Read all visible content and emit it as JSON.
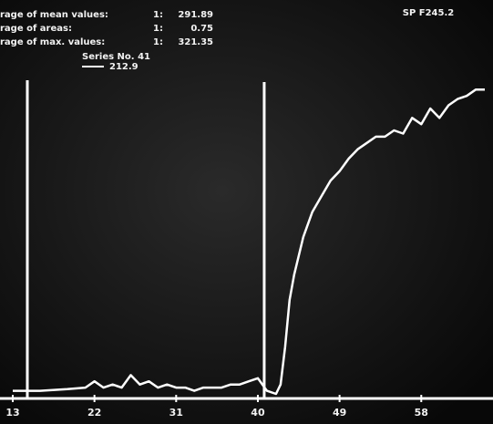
{
  "chart_data": {
    "type": "line",
    "header": [
      {
        "label": "rage of mean values:",
        "index": "1:",
        "value": "291.89"
      },
      {
        "label": "rage of areas:",
        "index": "1:",
        "value": "0.75"
      },
      {
        "label": "rage of max. values:",
        "index": "1:",
        "value": "321.35"
      }
    ],
    "corner_label": "SP F245.2",
    "legend_title": "Series No. 41",
    "x": [
      13,
      16,
      19,
      21,
      22,
      23,
      24,
      25,
      26,
      27,
      28,
      29,
      30,
      31,
      32,
      33,
      34,
      35,
      36,
      37,
      38,
      39,
      40,
      41,
      42,
      42.5,
      43,
      43.5,
      44,
      45,
      46,
      47,
      48,
      49,
      50,
      51,
      52,
      53,
      54,
      55,
      56,
      57,
      58,
      59,
      60,
      61,
      62,
      63,
      64,
      65
    ],
    "series": [
      {
        "name": "212.9",
        "color": "#ffffff",
        "values": [
          1,
          1,
          1.5,
          2,
          4,
          2,
          3,
          2,
          6,
          3,
          4,
          2,
          3,
          2,
          2,
          1,
          2,
          2,
          2,
          3,
          3,
          4,
          5,
          1,
          0,
          3,
          15,
          30,
          38,
          50,
          58,
          63,
          68,
          71,
          75,
          78,
          80,
          82,
          82,
          84,
          83,
          88,
          86,
          91,
          88,
          92,
          94,
          95,
          97,
          97
        ]
      }
    ],
    "cursor_x": 40.7,
    "xlim": [
      13,
      65.3
    ],
    "xticks": [
      13,
      22,
      31,
      40,
      49,
      58
    ],
    "ylim": [
      0,
      100
    ]
  }
}
